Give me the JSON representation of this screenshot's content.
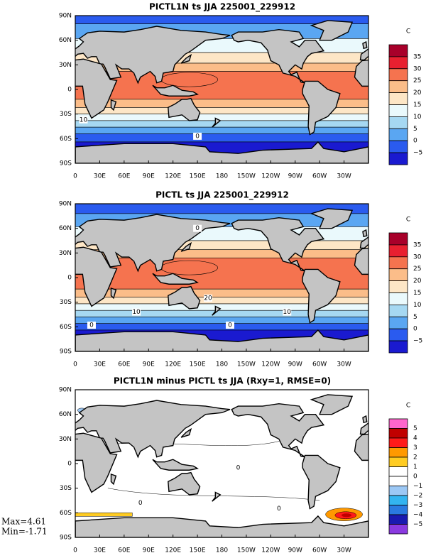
{
  "panels": [
    {
      "title": "PICTL1N ts JJA 225001_229912",
      "colorbar": {
        "unit": "C",
        "labels": [
          "35",
          "30",
          "25",
          "20",
          "15",
          "10",
          "5",
          "0",
          "−5"
        ],
        "colors": [
          "#a8002a",
          "#e82030",
          "#f5734f",
          "#fbbd89",
          "#fde6c6",
          "#eaf9fc",
          "#a6d8f2",
          "#5aa6f2",
          "#2a5bef",
          "#1a1ad0"
        ]
      },
      "contour_labels": [
        "10",
        "0"
      ]
    },
    {
      "title": "PICTL ts JJA 225001_229912",
      "colorbar": {
        "unit": "C",
        "labels": [
          "35",
          "30",
          "25",
          "20",
          "15",
          "10",
          "5",
          "0",
          "−5"
        ],
        "colors": [
          "#a8002a",
          "#e82030",
          "#f5734f",
          "#fbbd89",
          "#fde6c6",
          "#eaf9fc",
          "#a6d8f2",
          "#5aa6f2",
          "#2a5bef",
          "#1a1ad0"
        ]
      },
      "contour_labels": [
        "0",
        "20",
        "10",
        "10",
        "0",
        "0"
      ]
    },
    {
      "title": "PICTL1N minus PICTL ts JJA (Rxy=1, RMSE=0)",
      "colorbar": {
        "unit": "C",
        "labels": [
          "5",
          "4",
          "3",
          "2",
          "1",
          "0",
          "−1",
          "−2",
          "−3",
          "−4",
          "−5"
        ],
        "colors": [
          "#ff66cc",
          "#c00000",
          "#ff1a1a",
          "#ff9900",
          "#ffcc22",
          "#ffffff",
          "#ffffff",
          "#9cc8f5",
          "#33b4f0",
          "#2a7ae0",
          "#1a1ab0",
          "#8a3ae0"
        ]
      },
      "contour_labels": [
        "0",
        "0",
        "0"
      ]
    }
  ],
  "lat_labels": [
    "90N",
    "60N",
    "30N",
    "0",
    "30S",
    "60S",
    "90S"
  ],
  "lon_labels": [
    "0",
    "30E",
    "60E",
    "90E",
    "120E",
    "150E",
    "180",
    "150W",
    "120W",
    "90W",
    "60W",
    "30W"
  ],
  "stats": {
    "max": "Max=4.61",
    "min": "Min=-1.71"
  }
}
